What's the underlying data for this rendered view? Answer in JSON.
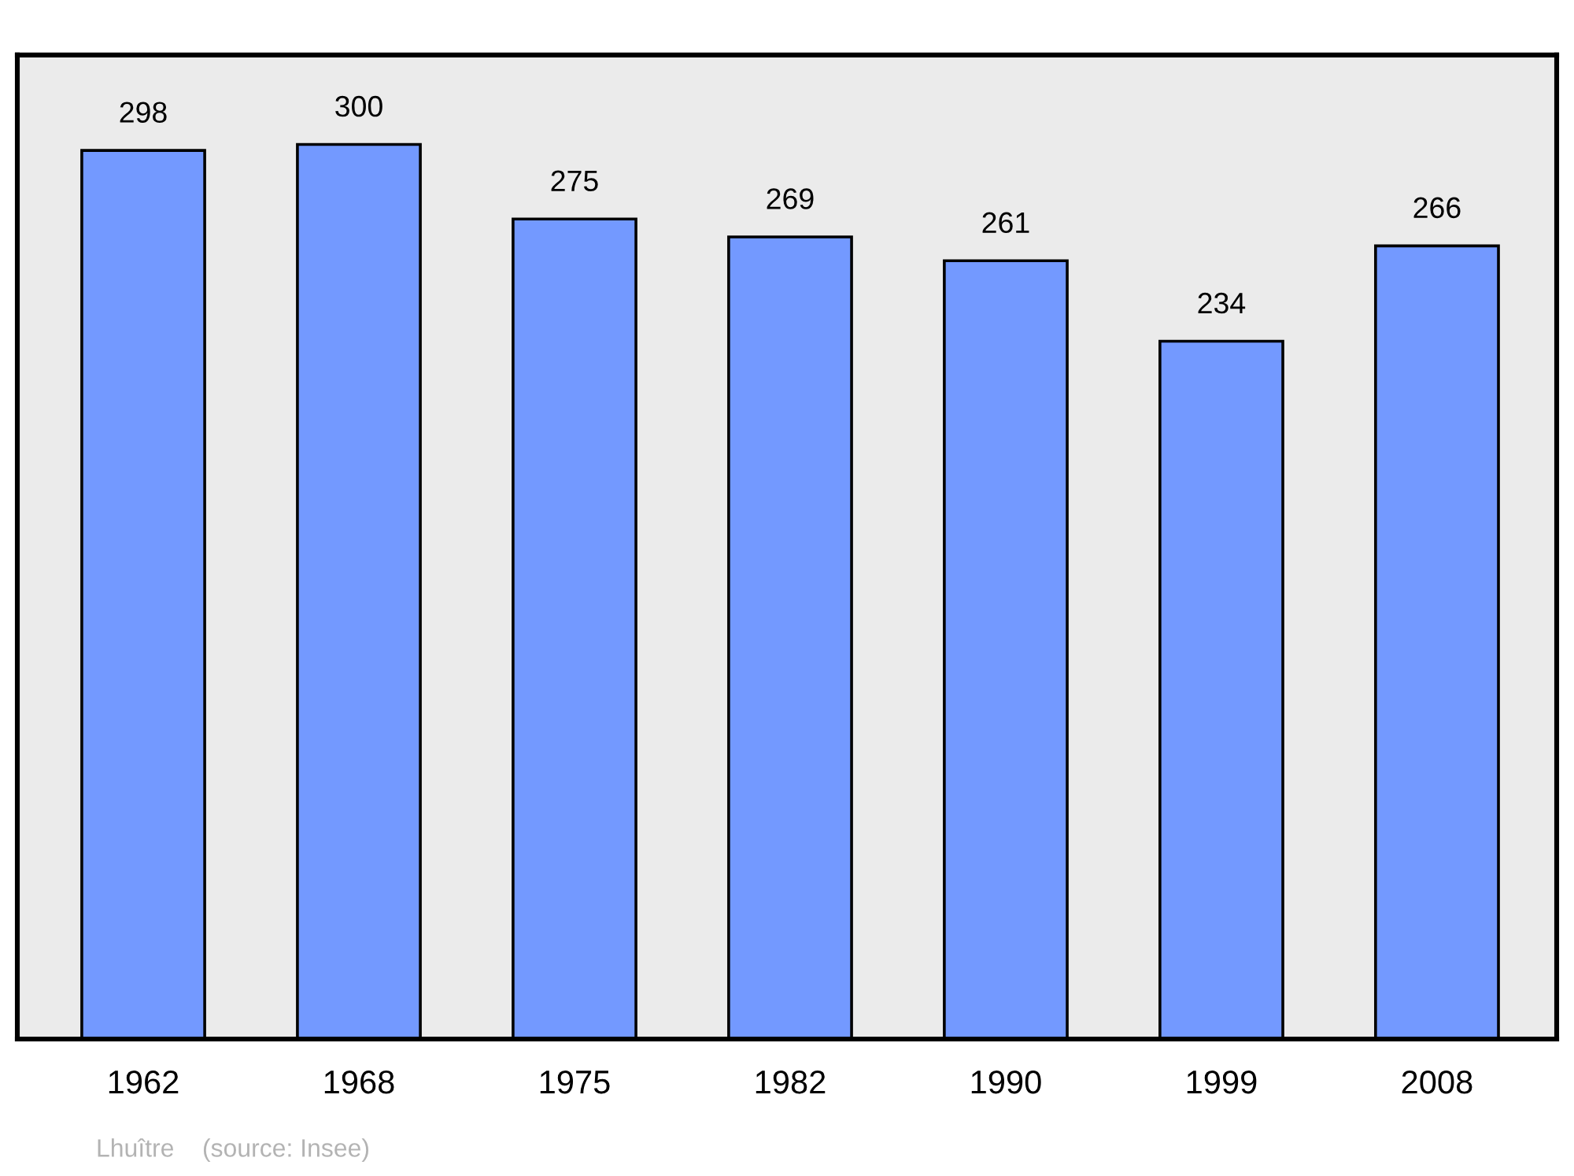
{
  "chart_data": {
    "type": "bar",
    "categories": [
      "1962",
      "1968",
      "1975",
      "1982",
      "1990",
      "1999",
      "2008"
    ],
    "values": [
      298,
      300,
      275,
      269,
      261,
      234,
      266
    ],
    "color": "#7399ff",
    "ylim": [
      0,
      330
    ],
    "data_labels": true,
    "grid": false,
    "legend": false,
    "annotations": [
      "Lhuître    (source: Insee)"
    ]
  }
}
